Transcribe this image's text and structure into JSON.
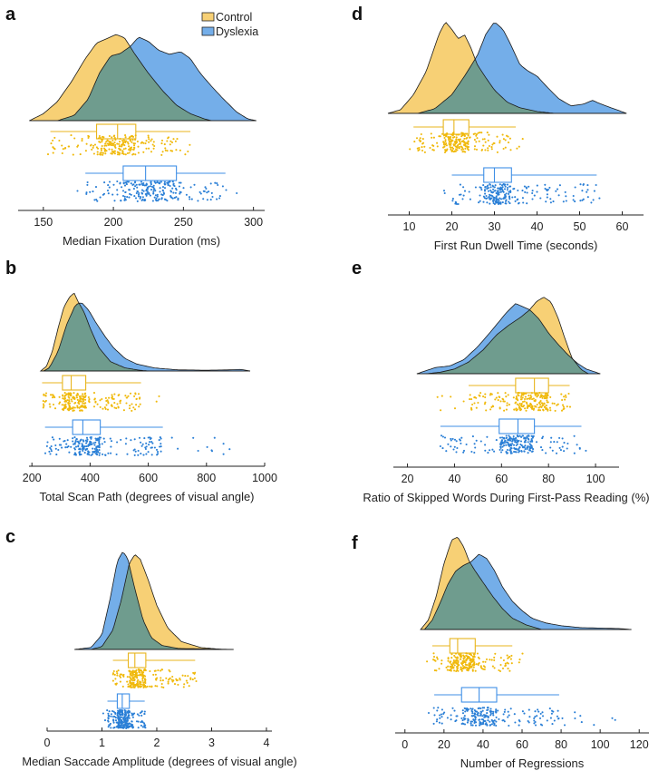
{
  "legend": {
    "position": "top-center",
    "entries": [
      {
        "label": "Control",
        "color": "#f5c242"
      },
      {
        "label": "Dyslexia",
        "color": "#3f8fe6"
      }
    ]
  },
  "colors": {
    "control_fill": "#f7d075",
    "control_line": "#e8b51d",
    "control_point": "#f0b90b",
    "dyslexia_fill": "#74aee9",
    "dyslexia_line": "#3f8fe6",
    "dyslexia_point": "#2a7fd6",
    "overlap_fill": "#6f9c8e"
  },
  "chart_data": [
    {
      "panel": "a",
      "type": "raincloud",
      "xlabel": "Median Fixation Duration (ms)",
      "xlim": [
        132,
        308
      ],
      "ticks": [
        150,
        200,
        250,
        300
      ],
      "control": {
        "box": {
          "whisker_low": 155,
          "q1": 188,
          "median": 203,
          "q3": 216,
          "whisker_high": 255
        },
        "points_range": [
          152,
          265
        ],
        "density": [
          [
            140,
            0
          ],
          [
            150,
            0.08
          ],
          [
            160,
            0.22
          ],
          [
            170,
            0.45
          ],
          [
            180,
            0.72
          ],
          [
            188,
            0.9
          ],
          [
            195,
            0.95
          ],
          [
            202,
            1.0
          ],
          [
            208,
            0.96
          ],
          [
            215,
            0.78
          ],
          [
            225,
            0.55
          ],
          [
            235,
            0.35
          ],
          [
            245,
            0.18
          ],
          [
            255,
            0.08
          ],
          [
            265,
            0.02
          ],
          [
            270,
            0
          ]
        ]
      },
      "dyslexia": {
        "box": {
          "whisker_low": 180,
          "q1": 207,
          "median": 223,
          "q3": 245,
          "whisker_high": 280
        },
        "points_range": [
          170,
          293
        ],
        "density": [
          [
            160,
            0
          ],
          [
            172,
            0.06
          ],
          [
            182,
            0.25
          ],
          [
            190,
            0.55
          ],
          [
            198,
            0.75
          ],
          [
            205,
            0.78
          ],
          [
            212,
            0.86
          ],
          [
            218,
            0.97
          ],
          [
            225,
            0.92
          ],
          [
            232,
            0.82
          ],
          [
            240,
            0.77
          ],
          [
            248,
            0.8
          ],
          [
            255,
            0.72
          ],
          [
            262,
            0.55
          ],
          [
            270,
            0.4
          ],
          [
            278,
            0.26
          ],
          [
            288,
            0.1
          ],
          [
            296,
            0.02
          ],
          [
            302,
            0
          ]
        ]
      }
    },
    {
      "panel": "b",
      "type": "raincloud",
      "xlabel": "Total Scan Path (degrees of visual angle)",
      "xlim": [
        190,
        1000
      ],
      "ticks": [
        200,
        400,
        600,
        800,
        1000
      ],
      "control": {
        "box": {
          "whisker_low": 235,
          "q1": 305,
          "median": 335,
          "q3": 385,
          "whisker_high": 575
        },
        "points_range": [
          235,
          660
        ],
        "density": [
          [
            230,
            0
          ],
          [
            250,
            0.06
          ],
          [
            270,
            0.25
          ],
          [
            290,
            0.55
          ],
          [
            310,
            0.82
          ],
          [
            330,
            0.95
          ],
          [
            345,
            1.0
          ],
          [
            360,
            0.88
          ],
          [
            380,
            0.75
          ],
          [
            400,
            0.55
          ],
          [
            430,
            0.3
          ],
          [
            470,
            0.12
          ],
          [
            520,
            0.04
          ],
          [
            570,
            0.01
          ],
          [
            600,
            0
          ]
        ]
      },
      "dyslexia": {
        "box": {
          "whisker_low": 245,
          "q1": 340,
          "median": 375,
          "q3": 435,
          "whisker_high": 650
        },
        "points_range": [
          250,
          920
        ],
        "density": [
          [
            240,
            0
          ],
          [
            260,
            0.04
          ],
          [
            290,
            0.25
          ],
          [
            320,
            0.6
          ],
          [
            350,
            0.85
          ],
          [
            370,
            0.88
          ],
          [
            395,
            0.78
          ],
          [
            420,
            0.62
          ],
          [
            450,
            0.45
          ],
          [
            480,
            0.3
          ],
          [
            520,
            0.16
          ],
          [
            560,
            0.09
          ],
          [
            620,
            0.04
          ],
          [
            700,
            0.015
          ],
          [
            800,
            0.01
          ],
          [
            880,
            0.015
          ],
          [
            920,
            0.02
          ],
          [
            950,
            0
          ]
        ]
      }
    },
    {
      "panel": "c",
      "type": "raincloud",
      "xlabel": "Median Saccade Amplitude (degrees of visual angle)",
      "xlim": [
        0,
        4.1
      ],
      "ticks": [
        0,
        1,
        2,
        3,
        4
      ],
      "control": {
        "box": {
          "whisker_low": 1.2,
          "q1": 1.48,
          "median": 1.6,
          "q3": 1.8,
          "whisker_high": 2.7
        },
        "points_range": [
          1.15,
          3.0
        ],
        "density": [
          [
            0.8,
            0
          ],
          [
            1.0,
            0.03
          ],
          [
            1.2,
            0.2
          ],
          [
            1.35,
            0.5
          ],
          [
            1.5,
            0.88
          ],
          [
            1.6,
            0.97
          ],
          [
            1.7,
            0.92
          ],
          [
            1.85,
            0.7
          ],
          [
            2.0,
            0.45
          ],
          [
            2.2,
            0.22
          ],
          [
            2.45,
            0.08
          ],
          [
            2.8,
            0.02
          ],
          [
            3.2,
            0
          ]
        ]
      },
      "dyslexia": {
        "box": {
          "whisker_low": 1.1,
          "q1": 1.28,
          "median": 1.37,
          "q3": 1.5,
          "whisker_high": 1.78
        },
        "points_range": [
          1.0,
          1.95
        ],
        "density": [
          [
            0.5,
            0
          ],
          [
            0.8,
            0.02
          ],
          [
            1.0,
            0.15
          ],
          [
            1.15,
            0.52
          ],
          [
            1.28,
            0.9
          ],
          [
            1.38,
            1.0
          ],
          [
            1.47,
            0.93
          ],
          [
            1.6,
            0.62
          ],
          [
            1.75,
            0.3
          ],
          [
            1.9,
            0.12
          ],
          [
            2.1,
            0.04
          ],
          [
            2.4,
            0.01
          ],
          [
            3.4,
            0
          ]
        ]
      }
    },
    {
      "panel": "d",
      "type": "raincloud",
      "xlabel": "First Run Dwell Time (seconds)",
      "xlim": [
        5,
        65
      ],
      "ticks": [
        10,
        20,
        30,
        40,
        50,
        60
      ],
      "control": {
        "box": {
          "whisker_low": 11,
          "q1": 18,
          "median": 20.5,
          "q3": 24,
          "whisker_high": 35
        },
        "points_range": [
          10,
          37
        ],
        "density": [
          [
            5,
            0
          ],
          [
            8,
            0.04
          ],
          [
            11,
            0.2
          ],
          [
            14,
            0.45
          ],
          [
            17,
            0.85
          ],
          [
            18.5,
            0.98
          ],
          [
            20,
            0.9
          ],
          [
            21.5,
            0.8
          ],
          [
            23,
            0.84
          ],
          [
            24.5,
            0.7
          ],
          [
            26,
            0.52
          ],
          [
            28,
            0.38
          ],
          [
            30,
            0.25
          ],
          [
            33,
            0.12
          ],
          [
            36,
            0.06
          ],
          [
            40,
            0.02
          ],
          [
            44,
            0
          ]
        ]
      },
      "dyslexia": {
        "box": {
          "whisker_low": 20,
          "q1": 27.5,
          "median": 30,
          "q3": 34,
          "whisker_high": 54
        },
        "points_range": [
          16,
          59
        ],
        "density": [
          [
            12,
            0
          ],
          [
            16,
            0.05
          ],
          [
            20,
            0.2
          ],
          [
            23,
            0.4
          ],
          [
            26,
            0.62
          ],
          [
            28,
            0.85
          ],
          [
            30,
            0.98
          ],
          [
            32,
            0.9
          ],
          [
            34,
            0.72
          ],
          [
            36,
            0.52
          ],
          [
            38,
            0.45
          ],
          [
            40,
            0.4
          ],
          [
            42,
            0.3
          ],
          [
            45,
            0.16
          ],
          [
            48,
            0.08
          ],
          [
            51,
            0.1
          ],
          [
            53,
            0.14
          ],
          [
            55,
            0.1
          ],
          [
            58,
            0.05
          ],
          [
            61,
            0
          ]
        ]
      }
    },
    {
      "panel": "e",
      "type": "raincloud",
      "xlabel": "Ratio of Skipped Words During First-Pass Reading (%)",
      "xlim": [
        14,
        110
      ],
      "ticks": [
        20,
        40,
        60,
        80,
        100
      ],
      "control": {
        "box": {
          "whisker_low": 46,
          "q1": 66,
          "median": 74,
          "q3": 80,
          "whisker_high": 89
        },
        "points_range": [
          32,
          92
        ],
        "density": [
          [
            28,
            0
          ],
          [
            34,
            0.02
          ],
          [
            40,
            0.06
          ],
          [
            46,
            0.15
          ],
          [
            52,
            0.3
          ],
          [
            58,
            0.5
          ],
          [
            63,
            0.62
          ],
          [
            68,
            0.72
          ],
          [
            72,
            0.82
          ],
          [
            75,
            0.93
          ],
          [
            78,
            0.98
          ],
          [
            81,
            0.92
          ],
          [
            84,
            0.72
          ],
          [
            87,
            0.45
          ],
          [
            90,
            0.2
          ],
          [
            94,
            0.05
          ],
          [
            97,
            0
          ]
        ]
      },
      "dyslexia": {
        "box": {
          "whisker_low": 34,
          "q1": 59,
          "median": 67,
          "q3": 74,
          "whisker_high": 94
        },
        "points_range": [
          30,
          98
        ],
        "density": [
          [
            24,
            0
          ],
          [
            28,
            0.04
          ],
          [
            32,
            0.08
          ],
          [
            38,
            0.1
          ],
          [
            44,
            0.18
          ],
          [
            50,
            0.35
          ],
          [
            56,
            0.56
          ],
          [
            62,
            0.78
          ],
          [
            66,
            0.9
          ],
          [
            69,
            0.86
          ],
          [
            72,
            0.82
          ],
          [
            76,
            0.7
          ],
          [
            80,
            0.52
          ],
          [
            84,
            0.38
          ],
          [
            88,
            0.25
          ],
          [
            92,
            0.14
          ],
          [
            96,
            0.06
          ],
          [
            102,
            0
          ]
        ]
      }
    },
    {
      "panel": "f",
      "type": "raincloud",
      "xlabel": "Number of Regressions",
      "xlim": [
        -5,
        125
      ],
      "ticks": [
        0,
        20,
        40,
        60,
        80,
        100,
        120
      ],
      "control": {
        "box": {
          "whisker_low": 14,
          "q1": 23,
          "median": 27,
          "q3": 36,
          "whisker_high": 55
        },
        "points_range": [
          10,
          62
        ],
        "density": [
          [
            8,
            0
          ],
          [
            12,
            0.1
          ],
          [
            16,
            0.35
          ],
          [
            20,
            0.7
          ],
          [
            24,
            0.95
          ],
          [
            27,
            0.98
          ],
          [
            30,
            0.88
          ],
          [
            33,
            0.72
          ],
          [
            36,
            0.62
          ],
          [
            40,
            0.5
          ],
          [
            45,
            0.35
          ],
          [
            50,
            0.22
          ],
          [
            55,
            0.12
          ],
          [
            62,
            0.05
          ],
          [
            70,
            0
          ]
        ]
      },
      "dyslexia": {
        "box": {
          "whisker_low": 15,
          "q1": 29,
          "median": 38,
          "q3": 47,
          "whisker_high": 79
        },
        "points_range": [
          12,
          108
        ],
        "density": [
          [
            10,
            0
          ],
          [
            14,
            0.1
          ],
          [
            18,
            0.28
          ],
          [
            22,
            0.48
          ],
          [
            26,
            0.62
          ],
          [
            30,
            0.68
          ],
          [
            34,
            0.72
          ],
          [
            38,
            0.8
          ],
          [
            42,
            0.75
          ],
          [
            46,
            0.62
          ],
          [
            50,
            0.45
          ],
          [
            55,
            0.3
          ],
          [
            60,
            0.2
          ],
          [
            65,
            0.12
          ],
          [
            72,
            0.07
          ],
          [
            80,
            0.04
          ],
          [
            90,
            0.02
          ],
          [
            100,
            0.015
          ],
          [
            110,
            0.01
          ],
          [
            116,
            0
          ]
        ]
      }
    }
  ]
}
